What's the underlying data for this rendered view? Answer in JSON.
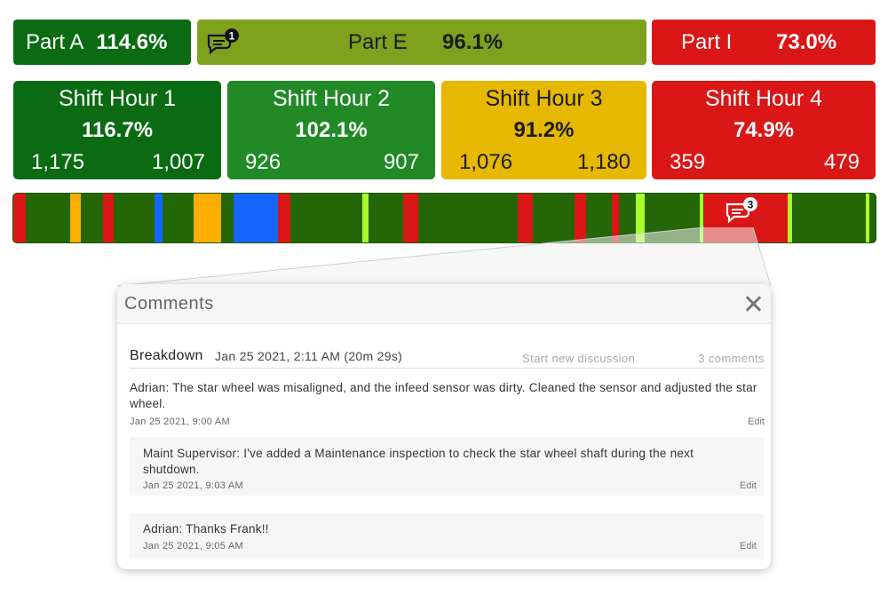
{
  "parts": [
    {
      "label": "Part A",
      "percent": "114.6%",
      "color": "#0a6b12"
    },
    {
      "label": "Part E",
      "percent": "96.1%",
      "color": "#7fa21e",
      "comment_badge": "1"
    },
    {
      "label": "Part I",
      "percent": "73.0%",
      "color": "#db1616"
    }
  ],
  "shift_hours": [
    {
      "title": "Shift Hour 1",
      "percent": "116.7%",
      "left_value": "1,175",
      "right_value": "1,007",
      "color": "#0a6b12"
    },
    {
      "title": "Shift Hour 2",
      "percent": "102.1%",
      "left_value": "926",
      "right_value": "907",
      "color": "#218a26"
    },
    {
      "title": "Shift Hour 3",
      "percent": "91.2%",
      "left_value": "1,076",
      "right_value": "1,180",
      "color": "#e6b800"
    },
    {
      "title": "Shift Hour 4",
      "percent": "74.9%",
      "left_value": "359",
      "right_value": "479",
      "color": "#db1616"
    }
  ],
  "timeline": {
    "comment_badge": "3",
    "segment_colors": {
      "running": "#256607",
      "breakdown": "#db1616",
      "short_stop": "#ffae00",
      "changeover": "#1565ff",
      "slow": "#a8ff2a"
    }
  },
  "comments_panel": {
    "title": "Comments",
    "event_type": "Breakdown",
    "event_time": "Jan 25 2021, 2:11 AM (20m 29s)",
    "start_discussion_label": "Start new discussion",
    "comment_count": "3 comments",
    "comments": [
      {
        "text": "Adrian: The star wheel was misaligned, and the infeed sensor was dirty. Cleaned the sensor and adjusted the star wheel.",
        "date": "Jan 25 2021, 9:00 AM",
        "edit_label": "Edit"
      },
      {
        "text": "Maint Supervisor: I've added a Maintenance inspection to check the star wheel shaft during the next shutdown.",
        "date": "Jan 25 2021, 9:03 AM",
        "edit_label": "Edit"
      },
      {
        "text": "Adrian: Thanks Frank!!",
        "date": "Jan 25 2021, 9:05 AM",
        "edit_label": "Edit"
      }
    ]
  }
}
